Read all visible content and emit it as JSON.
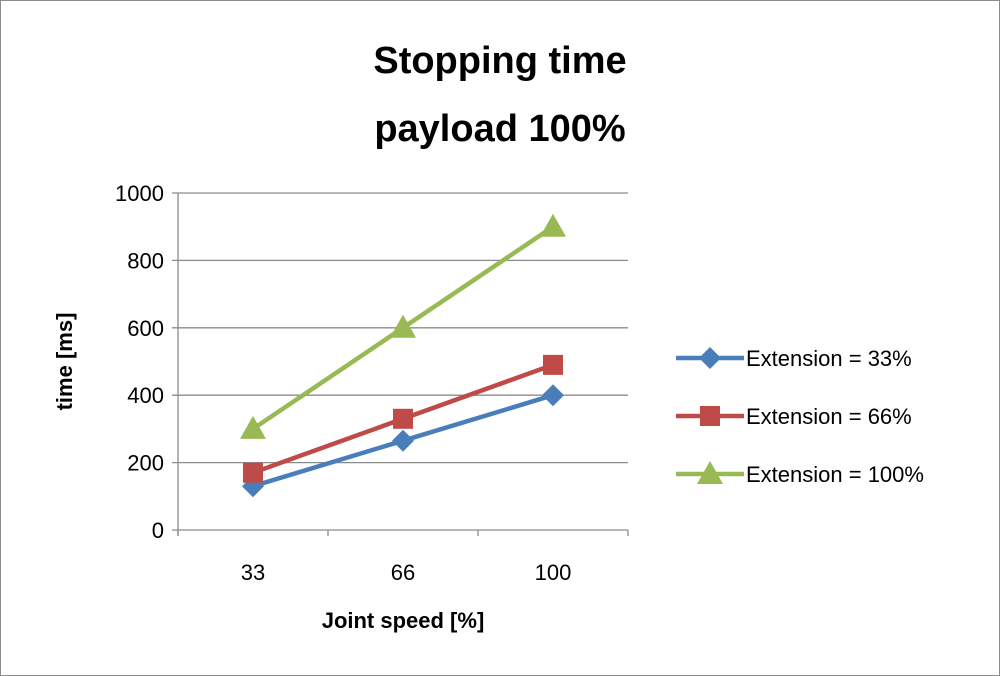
{
  "chart_data": {
    "type": "line",
    "title": [
      "Stopping time",
      "payload 100%"
    ],
    "xlabel": "Joint speed [%]",
    "ylabel": "time [ms]",
    "categories": [
      "33",
      "66",
      "100"
    ],
    "ylim": [
      0,
      1000
    ],
    "yticks": [
      0,
      200,
      400,
      600,
      800,
      1000
    ],
    "grid": true,
    "legend_position": "right",
    "series": [
      {
        "name": "Extension = 33%",
        "values": [
          130,
          265,
          400
        ],
        "color": "#4a7ebb",
        "marker": "diamond"
      },
      {
        "name": "Extension = 66%",
        "values": [
          170,
          330,
          490
        ],
        "color": "#be4b48",
        "marker": "square"
      },
      {
        "name": "Extension = 100%",
        "values": [
          300,
          600,
          900
        ],
        "color": "#98b954",
        "marker": "triangle"
      }
    ]
  }
}
